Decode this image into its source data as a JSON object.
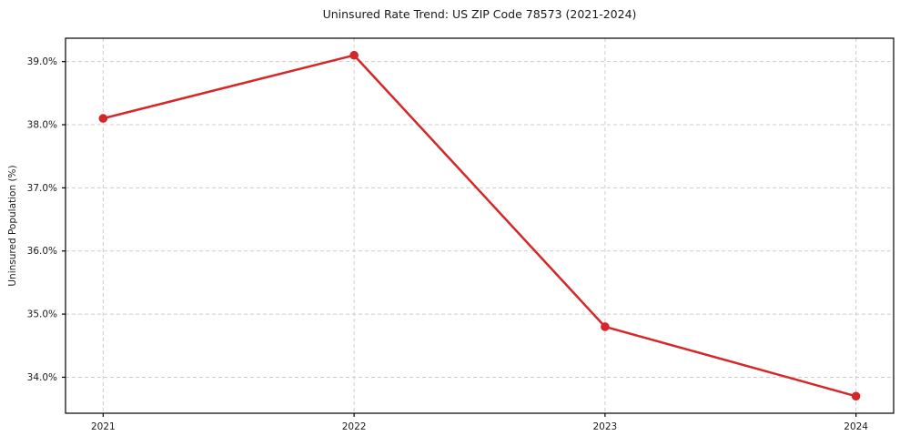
{
  "chart_data": {
    "type": "line",
    "title": "Uninsured Rate Trend: US ZIP Code 78573 (2021-2024)",
    "xlabel": "",
    "ylabel": "Uninsured Population (%)",
    "x": [
      2021,
      2022,
      2023,
      2024
    ],
    "xtick_labels": [
      "2021",
      "2022",
      "2023",
      "2024"
    ],
    "values": [
      38.1,
      39.1,
      34.8,
      33.7
    ],
    "yticks": [
      34,
      35,
      36,
      37,
      38,
      39
    ],
    "ytick_labels": [
      "34.0%",
      "35.0%",
      "36.0%",
      "37.0%",
      "38.0%",
      "39.0%"
    ],
    "xlim": [
      2020.85,
      2024.15
    ],
    "ylim": [
      33.43,
      39.37
    ],
    "grid": true,
    "grid_style": "dashed",
    "legend": false,
    "colors": {
      "line": "#d62728",
      "marker": "#d62728",
      "grid": "#cccccc",
      "axis": "#000000",
      "text": "#1a1a1a",
      "background": "#ffffff"
    }
  }
}
